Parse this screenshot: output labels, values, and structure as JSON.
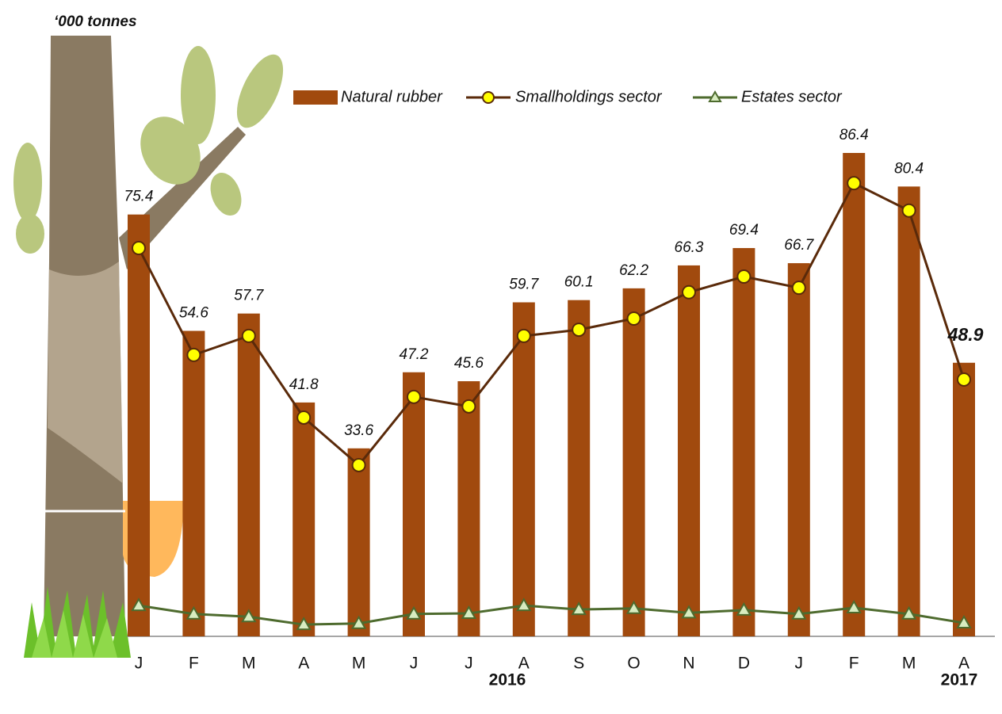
{
  "chart_data": {
    "type": "bar",
    "unit_label": "‘000 tonnes",
    "categories": [
      "J",
      "F",
      "M",
      "A",
      "M",
      "J",
      "J",
      "A",
      "S",
      "O",
      "N",
      "D",
      "J",
      "F",
      "M",
      "A"
    ],
    "year_labels": [
      "2016",
      "2017"
    ],
    "ylim": [
      0,
      100
    ],
    "series": [
      {
        "name": "Natural rubber",
        "type": "bar",
        "color": "#a14a0e",
        "data_labels": true,
        "values": [
          75.4,
          54.6,
          57.7,
          41.8,
          33.6,
          47.2,
          45.6,
          59.7,
          60.1,
          62.2,
          66.3,
          69.4,
          66.7,
          86.4,
          80.4,
          48.9
        ]
      },
      {
        "name": "Smallholdings sector",
        "type": "line",
        "marker": "circle",
        "color": "#5a2a0a",
        "marker_color": "#ffff00",
        "values": [
          69.4,
          50.3,
          53.7,
          39.1,
          30.6,
          42.8,
          41.1,
          53.7,
          54.8,
          56.8,
          61.5,
          64.3,
          62.3,
          81.0,
          76.1,
          45.9
        ]
      },
      {
        "name": "Estates sector",
        "type": "line",
        "marker": "triangle",
        "color": "#4e6b2e",
        "marker_color": "#d8ecc0",
        "values": [
          5.5,
          4.0,
          3.5,
          2.1,
          2.3,
          4.0,
          4.1,
          5.5,
          4.8,
          5.0,
          4.2,
          4.7,
          4.0,
          5.1,
          4.0,
          2.4
        ]
      }
    ]
  }
}
